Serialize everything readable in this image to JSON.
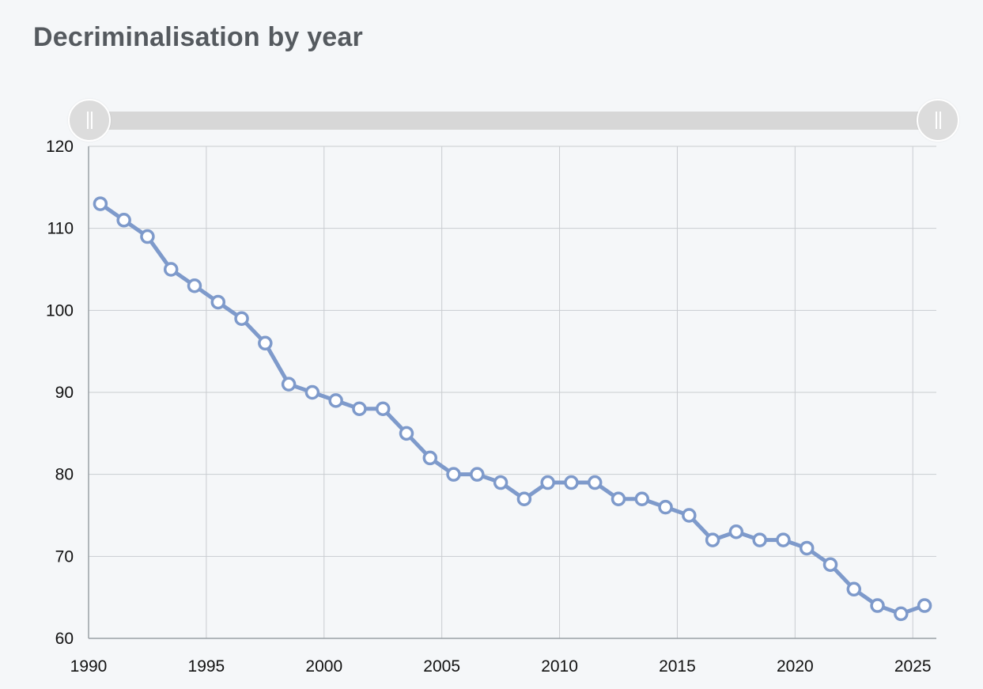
{
  "title": "Decriminalisation by year",
  "range_slider": {
    "left_handle_icon": "grip-icon",
    "right_handle_icon": "grip-icon"
  },
  "chart_data": {
    "type": "line",
    "title": "Decriminalisation by year",
    "xlabel": "",
    "ylabel": "",
    "xlim": [
      1990,
      2026
    ],
    "ylim": [
      60,
      120
    ],
    "x_ticks": [
      1990,
      1995,
      2000,
      2005,
      2010,
      2015,
      2020,
      2025
    ],
    "y_ticks": [
      60,
      70,
      80,
      90,
      100,
      110,
      120
    ],
    "grid": true,
    "line_color": "#7e9acb",
    "series": [
      {
        "x": [
          1990.5,
          1991.5,
          1992.5,
          1993.5,
          1994.5,
          1995.5,
          1996.5,
          1997.5,
          1998.5,
          1999.5,
          2000.5,
          2001.5,
          2002.5,
          2003.5,
          2004.5,
          2005.5,
          2006.5,
          2007.5,
          2008.5,
          2009.5,
          2010.5,
          2011.5,
          2012.5,
          2013.5,
          2014.5,
          2015.5,
          2016.5,
          2017.5,
          2018.5,
          2019.5,
          2020.5,
          2021.5,
          2022.5,
          2023.5,
          2024.5,
          2025.5
        ],
        "values": [
          113,
          111,
          109,
          105,
          103,
          101,
          99,
          96,
          91,
          90,
          89,
          88,
          88,
          85,
          82,
          80,
          80,
          79,
          77,
          79,
          79,
          79,
          77,
          77,
          76,
          75,
          72,
          73,
          72,
          72,
          71,
          69,
          66,
          64,
          63,
          64
        ]
      }
    ]
  }
}
